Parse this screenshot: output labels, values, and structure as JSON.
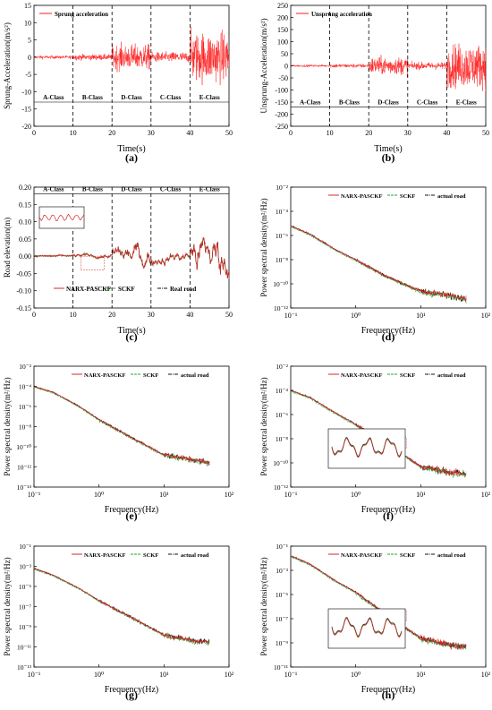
{
  "colors": {
    "narx": "#d62728",
    "sckf": "#2ca02c",
    "actual": "#111111",
    "accel": "#ff1a1a",
    "zoom_box": "#e05050"
  },
  "panels": [
    {
      "tag": "(a)",
      "chart_data": {
        "type": "line",
        "title": "",
        "xlabel": "Time(s)",
        "ylabel": "Sprung-Acceleration(m/s²)",
        "xlim": [
          0,
          50
        ],
        "ylim": [
          -20,
          15
        ],
        "xticks": [
          "0",
          "10",
          "20",
          "30",
          "40",
          "50"
        ],
        "yticks": [
          "15",
          "10",
          "5",
          "0",
          "-5",
          "-10",
          "-15",
          "-20"
        ],
        "series": [
          {
            "name": "Sprung acceleration",
            "values": [
              {
                "from": 0,
                "to": 10,
                "amplitude": 0.8
              },
              {
                "from": 10,
                "to": 20,
                "amplitude": 1.4
              },
              {
                "from": 20,
                "to": 30,
                "amplitude": 6
              },
              {
                "from": 30,
                "to": 40,
                "amplitude": 2.5
              },
              {
                "from": 40,
                "to": 50,
                "amplitude": 12
              }
            ]
          }
        ],
        "vlines": [
          10,
          20,
          30,
          40
        ],
        "classes": [
          {
            "from": 0,
            "to": 10,
            "label": "A-Class"
          },
          {
            "from": 10,
            "to": 20,
            "label": "B-Class"
          },
          {
            "from": 20,
            "to": 30,
            "label": "D-Class"
          },
          {
            "from": 30,
            "to": 40,
            "label": "C-Class"
          },
          {
            "from": 40,
            "to": 50,
            "label": "E-Class"
          }
        ],
        "class_y": -13,
        "legend": "top-left"
      }
    },
    {
      "tag": "(b)",
      "chart_data": {
        "type": "line",
        "title": "",
        "xlabel": "Time(s)",
        "ylabel": "Unsprung-Acceleration(m/s²)",
        "xlim": [
          0,
          50
        ],
        "ylim": [
          -250,
          250
        ],
        "xticks": [
          "0",
          "10",
          "20",
          "30",
          "40",
          "50"
        ],
        "yticks": [
          "250",
          "200",
          "150",
          "100",
          "50",
          "0",
          "-50",
          "-100",
          "-150",
          "-200",
          "-250"
        ],
        "series": [
          {
            "name": "Unsprung acceleration",
            "values": [
              {
                "from": 0,
                "to": 10,
                "amplitude": 8
              },
              {
                "from": 10,
                "to": 20,
                "amplitude": 14
              },
              {
                "from": 20,
                "to": 30,
                "amplitude": 60
              },
              {
                "from": 30,
                "to": 40,
                "amplitude": 25
              },
              {
                "from": 40,
                "to": 50,
                "amplitude": 150
              }
            ]
          }
        ],
        "vlines": [
          10,
          20,
          30,
          40
        ],
        "classes": [
          {
            "from": 0,
            "to": 10,
            "label": "A-Class"
          },
          {
            "from": 10,
            "to": 20,
            "label": "B-Class"
          },
          {
            "from": 20,
            "to": 30,
            "label": "D-Class"
          },
          {
            "from": 30,
            "to": 40,
            "label": "C-Class"
          },
          {
            "from": 40,
            "to": 50,
            "label": "E-Class"
          }
        ],
        "class_y": -170,
        "legend": "top-left"
      }
    },
    {
      "tag": "(c)",
      "chart_data": {
        "type": "line",
        "title": "",
        "xlabel": "Time(s)",
        "ylabel": "Road elevation(m)",
        "xlim": [
          0,
          50
        ],
        "ylim": [
          -0.15,
          0.2
        ],
        "xticks": [
          "0",
          "10",
          "20",
          "30",
          "40",
          "50"
        ],
        "yticks": [
          "0.20",
          "0.15",
          "0.10",
          "0.05",
          "0.00",
          "-0.05",
          "-0.10",
          "-0.15"
        ],
        "series": [
          {
            "name": "NARX-PASCKF"
          },
          {
            "name": "SCKF"
          },
          {
            "name": "Real road"
          }
        ],
        "road_profile": [
          {
            "from": 0,
            "to": 10,
            "amplitude": 0.003
          },
          {
            "from": 10,
            "to": 20,
            "amplitude": 0.008
          },
          {
            "from": 20,
            "to": 30,
            "amplitude": 0.05
          },
          {
            "from": 30,
            "to": 40,
            "amplitude": 0.025
          },
          {
            "from": 40,
            "to": 50,
            "amplitude": 0.09
          }
        ],
        "vlines": [
          10,
          20,
          30,
          40
        ],
        "classes": [
          {
            "from": 0,
            "to": 10,
            "label": "A-Class"
          },
          {
            "from": 10,
            "to": 20,
            "label": "B-Class"
          },
          {
            "from": 20,
            "to": 30,
            "label": "D-Class"
          },
          {
            "from": 30,
            "to": 40,
            "label": "C-Class"
          },
          {
            "from": 40,
            "to": 50,
            "label": "E-Class"
          }
        ],
        "class_y": 0.18,
        "legend": "bottom-left",
        "zoom_box_data": {
          "x": [
            12,
            18
          ],
          "y": [
            -0.04,
            0.0
          ]
        }
      }
    },
    {
      "tag": "(d)",
      "chart_data": {
        "type": "line",
        "title": "",
        "xlabel": "Frequency(Hz)",
        "ylabel": "Power spectral density(m²/Hz)",
        "xscale": "log",
        "yscale": "log",
        "xlim": [
          0.1,
          100
        ],
        "ylim": [
          1e-12,
          0.01
        ],
        "xticks": [
          "10⁻¹",
          "10⁰",
          "10¹",
          "10²"
        ],
        "yticks": [
          "10⁻²",
          "10⁻⁴",
          "10⁻⁶",
          "10⁻⁸",
          "10⁻¹⁰",
          "10⁻¹²"
        ],
        "series": [
          {
            "name": "NARX-PASCKF"
          },
          {
            "name": "SCKF"
          },
          {
            "name": "actual road"
          }
        ],
        "psd_knots": [
          [
            0.1,
            -5.2
          ],
          [
            0.2,
            -5.9
          ],
          [
            0.5,
            -7.2
          ],
          [
            1,
            -8.0
          ],
          [
            3,
            -9.4
          ],
          [
            10,
            -10.6
          ],
          [
            30,
            -11.0
          ],
          [
            50,
            -11.2
          ]
        ],
        "legend": "top-right"
      }
    },
    {
      "tag": "(e)",
      "chart_data": {
        "type": "line",
        "title": "",
        "xlabel": "Frequency(Hz)",
        "ylabel": "Power spectral density(m²/Hz)",
        "xscale": "log",
        "yscale": "log",
        "xlim": [
          0.1,
          100
        ],
        "ylim": [
          1e-14,
          0.01
        ],
        "xticks": [
          "10⁻¹",
          "10⁰",
          "10¹",
          "10²"
        ],
        "yticks": [
          "10⁻²",
          "10⁻⁴",
          "10⁻⁶",
          "10⁻⁸",
          "10⁻¹⁰",
          "10⁻¹²",
          "10⁻¹⁴"
        ],
        "series": [
          {
            "name": "NARX-PASCKF"
          },
          {
            "name": "SCKF"
          },
          {
            "name": "actual road"
          }
        ],
        "psd_knots": [
          [
            0.1,
            -4.0
          ],
          [
            0.2,
            -4.6
          ],
          [
            0.5,
            -6.0
          ],
          [
            1,
            -7.3
          ],
          [
            3,
            -9.0
          ],
          [
            10,
            -10.8
          ],
          [
            30,
            -11.3
          ],
          [
            50,
            -11.6
          ]
        ],
        "legend": "top-right"
      }
    },
    {
      "tag": "(f)",
      "chart_data": {
        "type": "line",
        "title": "",
        "xlabel": "Frequency(Hz)",
        "ylabel": "Power spectral density(m²/Hz)",
        "xscale": "log",
        "yscale": "log",
        "xlim": [
          0.1,
          100
        ],
        "ylim": [
          1e-12,
          0.01
        ],
        "xticks": [
          "10⁻¹",
          "10⁰",
          "10¹",
          "10²"
        ],
        "yticks": [
          "10⁻²",
          "10⁻⁴",
          "10⁻⁶",
          "10⁻⁸",
          "10⁻¹⁰",
          "10⁻¹²"
        ],
        "series": [
          {
            "name": "NARX-PASCKF"
          },
          {
            "name": "SCKF"
          },
          {
            "name": "actual road"
          }
        ],
        "psd_knots": [
          [
            0.1,
            -4.0
          ],
          [
            0.2,
            -4.6
          ],
          [
            0.5,
            -5.9
          ],
          [
            1,
            -6.8
          ],
          [
            3,
            -8.4
          ],
          [
            10,
            -10.3
          ],
          [
            30,
            -10.8
          ],
          [
            50,
            -10.9
          ]
        ],
        "legend": "top-right",
        "inset": true,
        "zoom_box_data": {
          "x": [
            3.5,
            6
          ],
          "y": [
            -8.8,
            -7.9
          ]
        }
      }
    },
    {
      "tag": "(g)",
      "chart_data": {
        "type": "line",
        "title": "",
        "xlabel": "Frequency(Hz)",
        "ylabel": "Power spectral density(m²/Hz)",
        "xscale": "log",
        "yscale": "log",
        "xlim": [
          0.1,
          100
        ],
        "ylim": [
          1e-13,
          0.1
        ],
        "xticks": [
          "10⁻¹",
          "10⁰",
          "10¹",
          "10²"
        ],
        "yticks": [
          "10⁻¹",
          "10⁻³",
          "10⁻⁵",
          "10⁻⁷",
          "10⁻⁹",
          "10⁻¹¹",
          "10⁻¹³"
        ],
        "series": [
          {
            "name": "NARX-PASCKF"
          },
          {
            "name": "SCKF"
          },
          {
            "name": "actual road"
          }
        ],
        "psd_knots": [
          [
            0.1,
            -3.2
          ],
          [
            0.2,
            -3.9
          ],
          [
            0.5,
            -5.2
          ],
          [
            1,
            -6.4
          ],
          [
            3,
            -8.0
          ],
          [
            10,
            -9.8
          ],
          [
            30,
            -10.4
          ],
          [
            50,
            -10.5
          ]
        ],
        "legend": "top-right"
      }
    },
    {
      "tag": "(h)",
      "chart_data": {
        "type": "line",
        "title": "",
        "xlabel": "Frequency(Hz)",
        "ylabel": "Power spectral density(m²/Hz)",
        "xscale": "log",
        "yscale": "log",
        "xlim": [
          0.1,
          100
        ],
        "ylim": [
          1e-11,
          0.1
        ],
        "xticks": [
          "10⁻¹",
          "10⁰",
          "10¹",
          "10²"
        ],
        "yticks": [
          "10⁻¹",
          "10⁻³",
          "10⁻⁵",
          "10⁻⁷",
          "10⁻⁹",
          "10⁻¹¹"
        ],
        "series": [
          {
            "name": "NARX-PASCKF"
          },
          {
            "name": "SCKF"
          },
          {
            "name": "actual road"
          }
        ],
        "psd_knots": [
          [
            0.1,
            -1.8
          ],
          [
            0.2,
            -2.5
          ],
          [
            0.5,
            -3.9
          ],
          [
            1,
            -4.8
          ],
          [
            3,
            -6.7
          ],
          [
            10,
            -8.6
          ],
          [
            30,
            -9.2
          ],
          [
            50,
            -9.3
          ]
        ],
        "legend": "top-right",
        "inset": true,
        "zoom_box_data": {
          "x": [
            3.5,
            6
          ],
          "y": [
            -7.2,
            -6.3
          ]
        }
      }
    }
  ]
}
